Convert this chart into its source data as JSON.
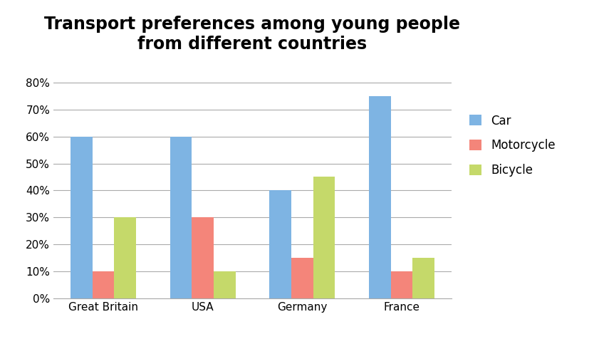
{
  "title": "Transport preferences among young people\nfrom different countries",
  "categories": [
    "Great Britain",
    "USA",
    "Germany",
    "France"
  ],
  "series": {
    "Car": [
      0.6,
      0.6,
      0.4,
      0.75
    ],
    "Motorcycle": [
      0.1,
      0.3,
      0.15,
      0.1
    ],
    "Bicycle": [
      0.3,
      0.1,
      0.45,
      0.15
    ]
  },
  "colors": {
    "Car": "#7EB4E3",
    "Motorcycle": "#F4857A",
    "Bicycle": "#C5D96A"
  },
  "legend_labels": [
    "Car",
    "Motorcycle",
    "Bicycle"
  ],
  "ylim": [
    0,
    0.88
  ],
  "yticks": [
    0.0,
    0.1,
    0.2,
    0.3,
    0.4,
    0.5,
    0.6,
    0.7,
    0.8
  ],
  "yticklabels": [
    "0%",
    "10%",
    "20%",
    "30%",
    "40%",
    "50%",
    "60%",
    "70%",
    "80%"
  ],
  "bar_width": 0.22,
  "background_color": "#FFFFFF",
  "title_fontsize": 17,
  "title_fontweight": "bold",
  "tick_fontsize": 11,
  "legend_fontsize": 12,
  "grid_color": "#AAAAAA",
  "grid_linewidth": 0.8
}
